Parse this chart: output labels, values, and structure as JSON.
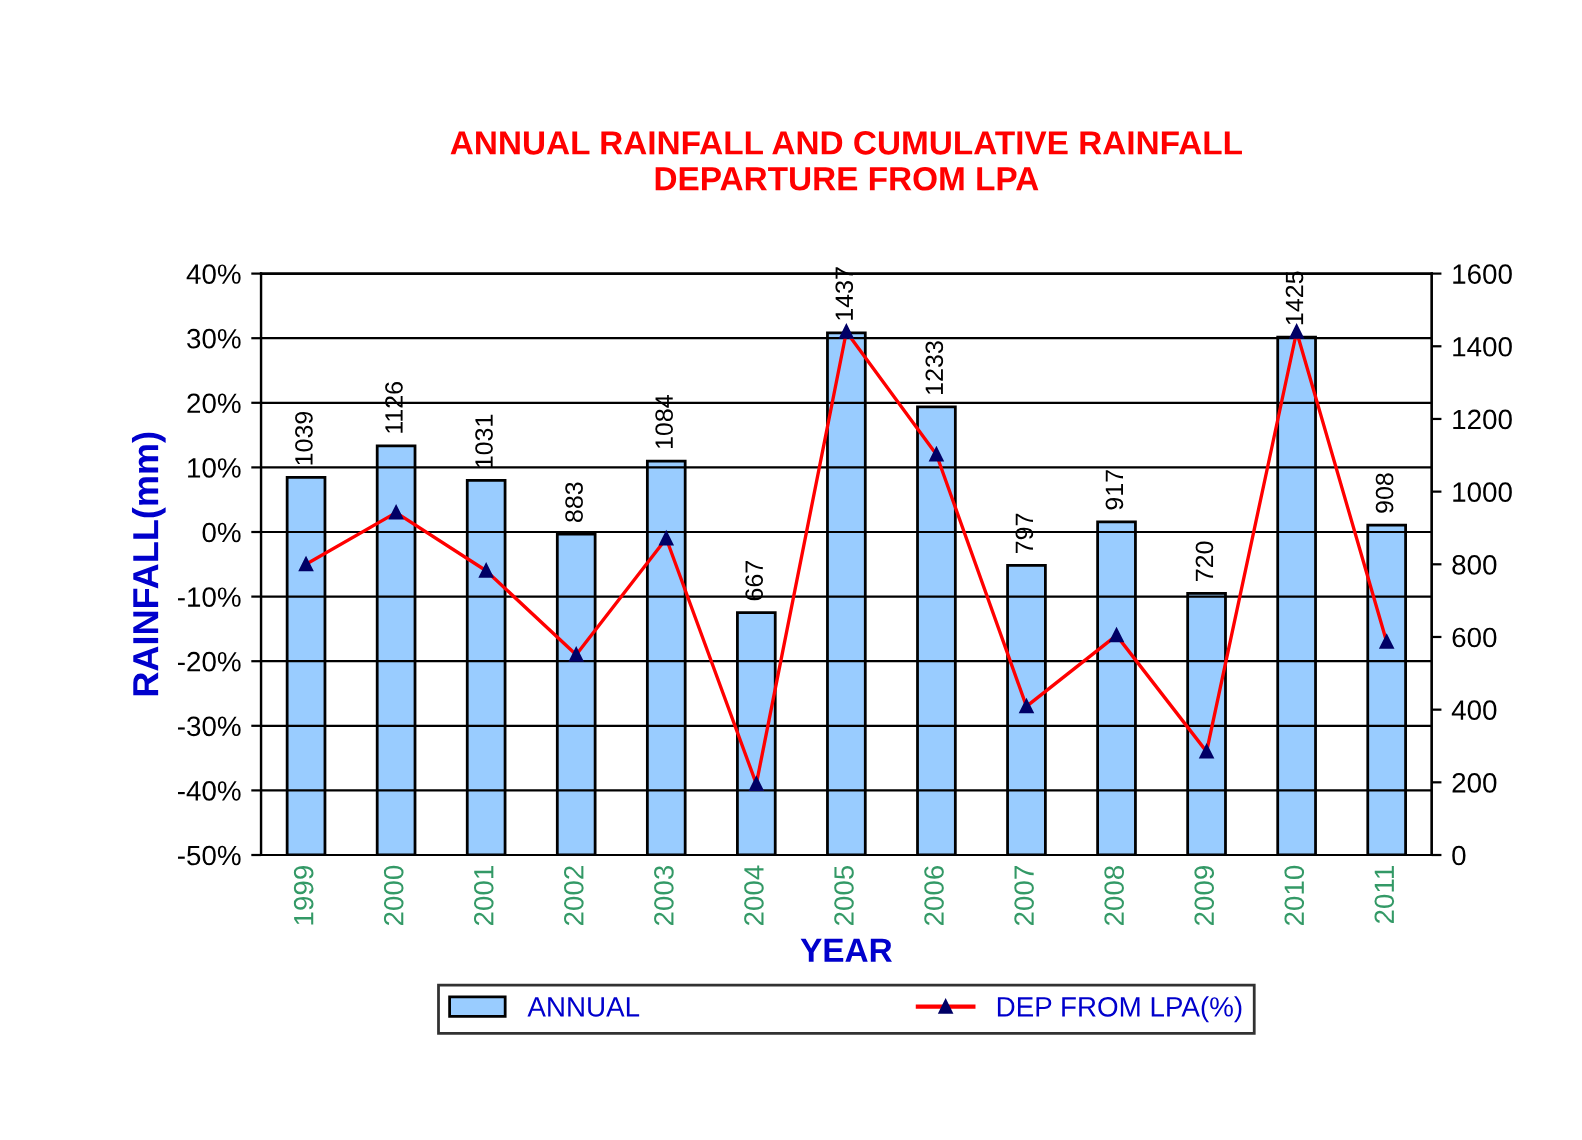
{
  "chart_data": {
    "type": "bar",
    "title": "ANNUAL RAINFALL AND CUMULATIVE RAINFALL\nDEPARTURE FROM LPA",
    "xlabel": "YEAR",
    "ylabel": "RAINFALL(mm)",
    "categories": [
      "1999",
      "2000",
      "2001",
      "2002",
      "2003",
      "2004",
      "2005",
      "2006",
      "2007",
      "2008",
      "2009",
      "2010",
      "2011"
    ],
    "series": [
      {
        "name": "ANNUAL",
        "axis": "y2",
        "color": "#99ccff",
        "values": [
          1039,
          1126,
          1031,
          883,
          1084,
          667,
          1437,
          1233,
          797,
          917,
          720,
          1425,
          908
        ],
        "data_labels": true
      },
      {
        "name": "DEP FROM LPA(%)",
        "type": "line",
        "color": "#ff0000",
        "marker": "triangle",
        "values": [
          -5,
          3,
          -6,
          -19,
          -1,
          -39,
          31,
          12,
          -27,
          -16,
          -34,
          31,
          -17
        ]
      }
    ],
    "ylim": [
      -50,
      40
    ],
    "yticks": [
      {
        "value": -50,
        "label": "-50%"
      },
      {
        "value": -40,
        "label": "-40%"
      },
      {
        "value": -30,
        "label": "-30%"
      },
      {
        "value": -20,
        "label": "-20%"
      },
      {
        "value": -10,
        "label": "-10%"
      },
      {
        "value": 0,
        "label": "0%"
      },
      {
        "value": 10,
        "label": "10%"
      },
      {
        "value": 20,
        "label": "20%"
      },
      {
        "value": 30,
        "label": "30%"
      },
      {
        "value": 40,
        "label": "40%"
      }
    ],
    "y2lim": [
      0,
      1600
    ],
    "y2ticks": [
      0,
      200,
      400,
      600,
      800,
      1000,
      1200,
      1400,
      1600
    ],
    "grid": "y",
    "legend": "bottom"
  }
}
